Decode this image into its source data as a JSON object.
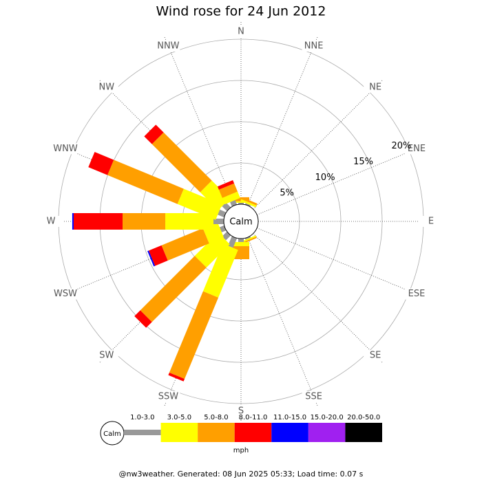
{
  "chart_data": {
    "type": "windrose",
    "title": "Wind rose for 24 Jun 2012",
    "categories": [
      "N",
      "NNE",
      "NE",
      "ENE",
      "E",
      "ESE",
      "SE",
      "SSE",
      "S",
      "SSW",
      "SW",
      "WSW",
      "W",
      "WNW",
      "NW",
      "NNW"
    ],
    "calm_label": "Calm",
    "ylim": [
      0,
      20
    ],
    "yticks": [
      {
        "value": 5,
        "label": "5%"
      },
      {
        "value": 10,
        "label": "10%"
      },
      {
        "value": 15,
        "label": "15%"
      },
      {
        "value": 20,
        "label": "20%"
      }
    ],
    "unit_label": "mph",
    "series": [
      {
        "name": "1.0-3.0",
        "color": "#999999",
        "values": [
          0.17,
          0.17,
          0,
          0,
          0,
          0,
          0,
          0.17,
          0.42,
          1.25,
          0.83,
          0.58,
          1.25,
          0.83,
          0.83,
          0.58
        ]
      },
      {
        "name": "3.0-5.0",
        "color": "#ffff00",
        "values": [
          0.17,
          0.25,
          0,
          0,
          0,
          0,
          0,
          0.17,
          0.5,
          6.25,
          4.0,
          1.92,
          5.83,
          5.0,
          3.08,
          0.83
        ]
      },
      {
        "name": "5.0-8.0",
        "color": "#ff9f00",
        "values": [
          0.5,
          0.25,
          0,
          0,
          0,
          0,
          0,
          0.17,
          1.58,
          10.67,
          9.33,
          5.42,
          5.17,
          9.17,
          8.25,
          1.08
        ]
      },
      {
        "name": "8.0-11.0",
        "color": "#ff0000",
        "values": [
          0,
          0,
          0,
          0,
          0,
          0,
          0,
          0,
          0,
          0.33,
          1.0,
          1.67,
          5.92,
          2.5,
          1.33,
          0.42
        ]
      },
      {
        "name": "11.0-15.0",
        "color": "#0000ff",
        "values": [
          0,
          0,
          0,
          0,
          0,
          0,
          0,
          0,
          0,
          0,
          0,
          0.17,
          0.17,
          0,
          0,
          0
        ]
      },
      {
        "name": "15.0-20.0",
        "color": "#a020f0",
        "values": [
          0,
          0,
          0,
          0,
          0,
          0,
          0,
          0,
          0,
          0,
          0,
          0,
          0,
          0,
          0,
          0
        ]
      },
      {
        "name": "20.0-50.0",
        "color": "#000000",
        "values": [
          0,
          0,
          0,
          0,
          0,
          0,
          0,
          0,
          0,
          0,
          0,
          0,
          0,
          0,
          0,
          0
        ]
      }
    ],
    "footer": "@nw3weather. Generated: 08 Jun 2025 05:33; Load time: 0.07 s"
  }
}
